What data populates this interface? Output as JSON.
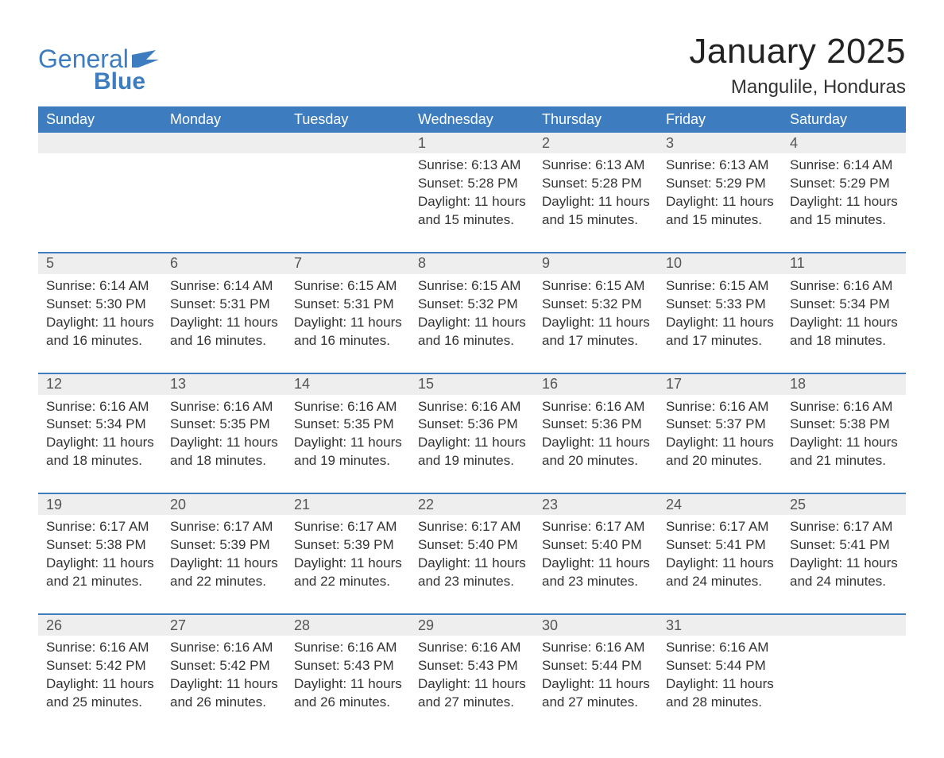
{
  "brand": {
    "word1": "General",
    "word2": "Blue"
  },
  "title": "January 2025",
  "location": "Mangulile, Honduras",
  "style": {
    "accent_color": "#3d7cbf",
    "header_bg": "#3d7cbf",
    "header_text": "#ffffff",
    "daynum_bg": "#eeeeee",
    "body_text": "#333333",
    "title_fontsize": 44,
    "location_fontsize": 24,
    "dayheader_fontsize": 18,
    "cell_fontsize": 17
  },
  "day_headers": [
    "Sunday",
    "Monday",
    "Tuesday",
    "Wednesday",
    "Thursday",
    "Friday",
    "Saturday"
  ],
  "weeks": [
    {
      "cells": [
        {
          "empty": true
        },
        {
          "empty": true
        },
        {
          "empty": true
        },
        {
          "day": "1",
          "sunrise": "6:13 AM",
          "sunset": "5:28 PM",
          "daylight": "11 hours and 15 minutes."
        },
        {
          "day": "2",
          "sunrise": "6:13 AM",
          "sunset": "5:28 PM",
          "daylight": "11 hours and 15 minutes."
        },
        {
          "day": "3",
          "sunrise": "6:13 AM",
          "sunset": "5:29 PM",
          "daylight": "11 hours and 15 minutes."
        },
        {
          "day": "4",
          "sunrise": "6:14 AM",
          "sunset": "5:29 PM",
          "daylight": "11 hours and 15 minutes."
        }
      ]
    },
    {
      "cells": [
        {
          "day": "5",
          "sunrise": "6:14 AM",
          "sunset": "5:30 PM",
          "daylight": "11 hours and 16 minutes."
        },
        {
          "day": "6",
          "sunrise": "6:14 AM",
          "sunset": "5:31 PM",
          "daylight": "11 hours and 16 minutes."
        },
        {
          "day": "7",
          "sunrise": "6:15 AM",
          "sunset": "5:31 PM",
          "daylight": "11 hours and 16 minutes."
        },
        {
          "day": "8",
          "sunrise": "6:15 AM",
          "sunset": "5:32 PM",
          "daylight": "11 hours and 16 minutes."
        },
        {
          "day": "9",
          "sunrise": "6:15 AM",
          "sunset": "5:32 PM",
          "daylight": "11 hours and 17 minutes."
        },
        {
          "day": "10",
          "sunrise": "6:15 AM",
          "sunset": "5:33 PM",
          "daylight": "11 hours and 17 minutes."
        },
        {
          "day": "11",
          "sunrise": "6:16 AM",
          "sunset": "5:34 PM",
          "daylight": "11 hours and 18 minutes."
        }
      ]
    },
    {
      "cells": [
        {
          "day": "12",
          "sunrise": "6:16 AM",
          "sunset": "5:34 PM",
          "daylight": "11 hours and 18 minutes."
        },
        {
          "day": "13",
          "sunrise": "6:16 AM",
          "sunset": "5:35 PM",
          "daylight": "11 hours and 18 minutes."
        },
        {
          "day": "14",
          "sunrise": "6:16 AM",
          "sunset": "5:35 PM",
          "daylight": "11 hours and 19 minutes."
        },
        {
          "day": "15",
          "sunrise": "6:16 AM",
          "sunset": "5:36 PM",
          "daylight": "11 hours and 19 minutes."
        },
        {
          "day": "16",
          "sunrise": "6:16 AM",
          "sunset": "5:36 PM",
          "daylight": "11 hours and 20 minutes."
        },
        {
          "day": "17",
          "sunrise": "6:16 AM",
          "sunset": "5:37 PM",
          "daylight": "11 hours and 20 minutes."
        },
        {
          "day": "18",
          "sunrise": "6:16 AM",
          "sunset": "5:38 PM",
          "daylight": "11 hours and 21 minutes."
        }
      ]
    },
    {
      "cells": [
        {
          "day": "19",
          "sunrise": "6:17 AM",
          "sunset": "5:38 PM",
          "daylight": "11 hours and 21 minutes."
        },
        {
          "day": "20",
          "sunrise": "6:17 AM",
          "sunset": "5:39 PM",
          "daylight": "11 hours and 22 minutes."
        },
        {
          "day": "21",
          "sunrise": "6:17 AM",
          "sunset": "5:39 PM",
          "daylight": "11 hours and 22 minutes."
        },
        {
          "day": "22",
          "sunrise": "6:17 AM",
          "sunset": "5:40 PM",
          "daylight": "11 hours and 23 minutes."
        },
        {
          "day": "23",
          "sunrise": "6:17 AM",
          "sunset": "5:40 PM",
          "daylight": "11 hours and 23 minutes."
        },
        {
          "day": "24",
          "sunrise": "6:17 AM",
          "sunset": "5:41 PM",
          "daylight": "11 hours and 24 minutes."
        },
        {
          "day": "25",
          "sunrise": "6:17 AM",
          "sunset": "5:41 PM",
          "daylight": "11 hours and 24 minutes."
        }
      ]
    },
    {
      "cells": [
        {
          "day": "26",
          "sunrise": "6:16 AM",
          "sunset": "5:42 PM",
          "daylight": "11 hours and 25 minutes."
        },
        {
          "day": "27",
          "sunrise": "6:16 AM",
          "sunset": "5:42 PM",
          "daylight": "11 hours and 26 minutes."
        },
        {
          "day": "28",
          "sunrise": "6:16 AM",
          "sunset": "5:43 PM",
          "daylight": "11 hours and 26 minutes."
        },
        {
          "day": "29",
          "sunrise": "6:16 AM",
          "sunset": "5:43 PM",
          "daylight": "11 hours and 27 minutes."
        },
        {
          "day": "30",
          "sunrise": "6:16 AM",
          "sunset": "5:44 PM",
          "daylight": "11 hours and 27 minutes."
        },
        {
          "day": "31",
          "sunrise": "6:16 AM",
          "sunset": "5:44 PM",
          "daylight": "11 hours and 28 minutes."
        },
        {
          "empty": true
        }
      ]
    }
  ],
  "labels": {
    "sunrise": "Sunrise: ",
    "sunset": "Sunset: ",
    "daylight": "Daylight: "
  }
}
